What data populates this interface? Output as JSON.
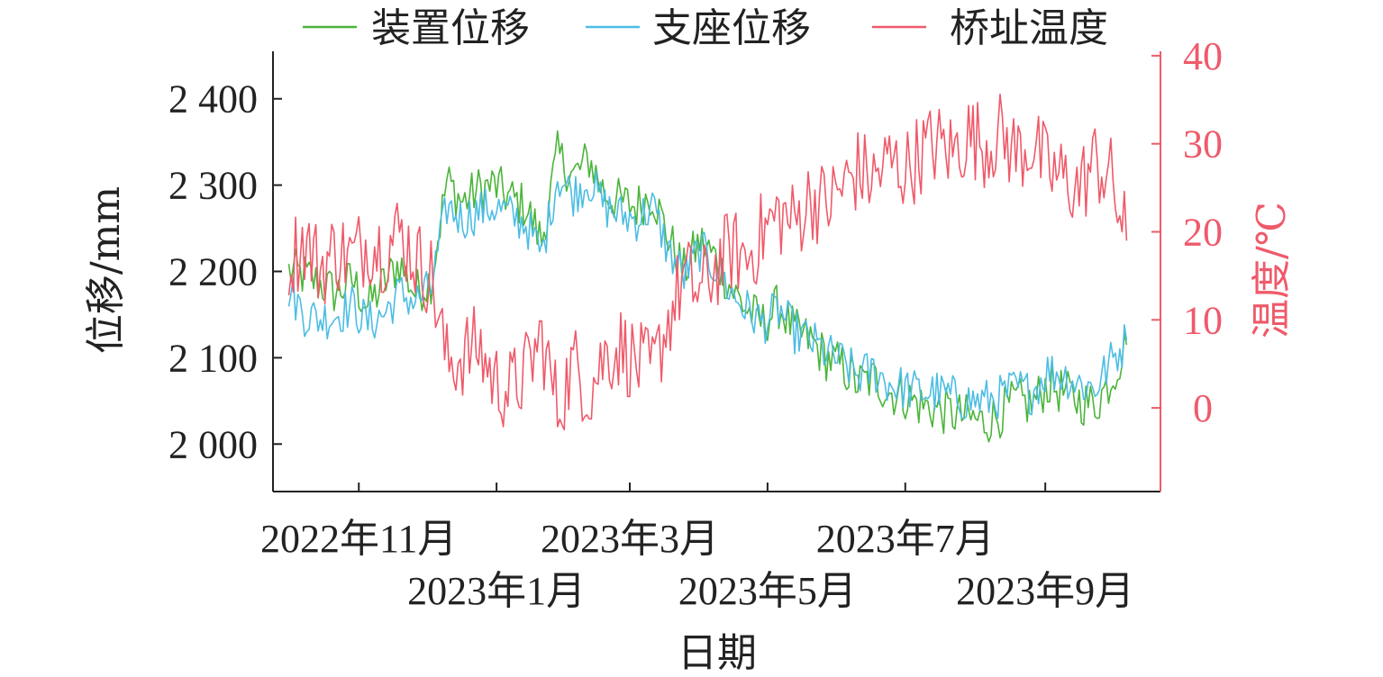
{
  "chart_data": {
    "type": "line",
    "title": "",
    "xlabel": "日期",
    "ylabel_left": "位移/mm",
    "ylabel_right": "温度/℃",
    "y_left_lim": [
      1945,
      2455
    ],
    "y_right_lim": [
      -9.5,
      40.5
    ],
    "y_left_ticks": [
      {
        "value": 2000,
        "label": "2 000"
      },
      {
        "value": 2100,
        "label": "2 100"
      },
      {
        "value": 2200,
        "label": "2 200"
      },
      {
        "value": 2300,
        "label": "2 300"
      },
      {
        "value": 2400,
        "label": "2 400"
      }
    ],
    "y_right_ticks": [
      {
        "value": 0,
        "label": "0"
      },
      {
        "value": 10,
        "label": "10"
      },
      {
        "value": 20,
        "label": "20"
      },
      {
        "value": 30,
        "label": "30"
      },
      {
        "value": 40,
        "label": "40"
      }
    ],
    "x_range": [
      "2022-09-24",
      "2023-10-22"
    ],
    "x_ticks": [
      {
        "date": "2022-11-01",
        "label": "2022年11月",
        "row": 1
      },
      {
        "date": "2023-01-01",
        "label": "2023年1月",
        "row": 2
      },
      {
        "date": "2023-03-01",
        "label": "2023年3月",
        "row": 1
      },
      {
        "date": "2023-05-01",
        "label": "2023年5月",
        "row": 2
      },
      {
        "date": "2023-07-01",
        "label": "2023年7月",
        "row": 1
      },
      {
        "date": "2023-09-01",
        "label": "2023年9月",
        "row": 2
      }
    ],
    "legend_position": "top",
    "grid": false,
    "series": [
      {
        "name": "装置位移",
        "axis": "left",
        "color": "#4bb53a",
        "points": [
          [
            "2022-10-01",
            2200
          ],
          [
            "2022-10-08",
            2195
          ],
          [
            "2022-10-15",
            2185
          ],
          [
            "2022-10-22",
            2175
          ],
          [
            "2022-10-29",
            2190
          ],
          [
            "2022-11-05",
            2160
          ],
          [
            "2022-11-12",
            2185
          ],
          [
            "2022-11-19",
            2210
          ],
          [
            "2022-11-26",
            2175
          ],
          [
            "2022-12-03",
            2190
          ],
          [
            "2022-12-10",
            2305
          ],
          [
            "2022-12-17",
            2280
          ],
          [
            "2022-12-24",
            2295
          ],
          [
            "2022-12-31",
            2300
          ],
          [
            "2023-01-07",
            2285
          ],
          [
            "2023-01-14",
            2275
          ],
          [
            "2023-01-21",
            2235
          ],
          [
            "2023-01-28",
            2335
          ],
          [
            "2023-02-04",
            2310
          ],
          [
            "2023-02-11",
            2330
          ],
          [
            "2023-02-18",
            2290
          ],
          [
            "2023-02-25",
            2280
          ],
          [
            "2023-03-04",
            2275
          ],
          [
            "2023-03-11",
            2290
          ],
          [
            "2023-03-18",
            2240
          ],
          [
            "2023-03-25",
            2200
          ],
          [
            "2023-04-01",
            2235
          ],
          [
            "2023-04-08",
            2215
          ],
          [
            "2023-04-15",
            2180
          ],
          [
            "2023-04-22",
            2155
          ],
          [
            "2023-04-29",
            2140
          ],
          [
            "2023-05-06",
            2160
          ],
          [
            "2023-05-13",
            2130
          ],
          [
            "2023-05-20",
            2120
          ],
          [
            "2023-05-27",
            2100
          ],
          [
            "2023-06-03",
            2090
          ],
          [
            "2023-06-10",
            2070
          ],
          [
            "2023-06-17",
            2075
          ],
          [
            "2023-06-24",
            2060
          ],
          [
            "2023-07-01",
            2055
          ],
          [
            "2023-07-08",
            2045
          ],
          [
            "2023-07-15",
            2040
          ],
          [
            "2023-07-22",
            2035
          ],
          [
            "2023-07-29",
            2030
          ],
          [
            "2023-08-05",
            2025
          ],
          [
            "2023-08-12",
            2035
          ],
          [
            "2023-08-19",
            2050
          ],
          [
            "2023-08-26",
            2045
          ],
          [
            "2023-09-02",
            2070
          ],
          [
            "2023-09-09",
            2060
          ],
          [
            "2023-09-16",
            2050
          ],
          [
            "2023-09-23",
            2045
          ],
          [
            "2023-09-30",
            2075
          ],
          [
            "2023-10-07",
            2115
          ]
        ]
      },
      {
        "name": "支座位移",
        "axis": "left",
        "color": "#4dbde3",
        "points": [
          [
            "2022-10-01",
            2180
          ],
          [
            "2022-10-08",
            2150
          ],
          [
            "2022-10-15",
            2145
          ],
          [
            "2022-10-22",
            2150
          ],
          [
            "2022-10-29",
            2160
          ],
          [
            "2022-11-05",
            2140
          ],
          [
            "2022-11-12",
            2150
          ],
          [
            "2022-11-19",
            2175
          ],
          [
            "2022-11-26",
            2165
          ],
          [
            "2022-12-03",
            2180
          ],
          [
            "2022-12-10",
            2275
          ],
          [
            "2022-12-17",
            2260
          ],
          [
            "2022-12-24",
            2270
          ],
          [
            "2022-12-31",
            2275
          ],
          [
            "2023-01-07",
            2265
          ],
          [
            "2023-01-14",
            2255
          ],
          [
            "2023-01-21",
            2220
          ],
          [
            "2023-01-28",
            2310
          ],
          [
            "2023-02-04",
            2290
          ],
          [
            "2023-02-11",
            2305
          ],
          [
            "2023-02-18",
            2275
          ],
          [
            "2023-02-25",
            2265
          ],
          [
            "2023-03-04",
            2260
          ],
          [
            "2023-03-11",
            2275
          ],
          [
            "2023-03-18",
            2225
          ],
          [
            "2023-03-25",
            2195
          ],
          [
            "2023-04-01",
            2225
          ],
          [
            "2023-04-08",
            2205
          ],
          [
            "2023-04-15",
            2175
          ],
          [
            "2023-04-22",
            2155
          ],
          [
            "2023-04-29",
            2140
          ],
          [
            "2023-05-06",
            2155
          ],
          [
            "2023-05-13",
            2130
          ],
          [
            "2023-05-20",
            2120
          ],
          [
            "2023-05-27",
            2105
          ],
          [
            "2023-06-03",
            2095
          ],
          [
            "2023-06-10",
            2080
          ],
          [
            "2023-06-17",
            2085
          ],
          [
            "2023-06-24",
            2070
          ],
          [
            "2023-07-01",
            2065
          ],
          [
            "2023-07-08",
            2060
          ],
          [
            "2023-07-15",
            2060
          ],
          [
            "2023-07-22",
            2055
          ],
          [
            "2023-07-29",
            2050
          ],
          [
            "2023-08-05",
            2050
          ],
          [
            "2023-08-12",
            2055
          ],
          [
            "2023-08-19",
            2065
          ],
          [
            "2023-08-26",
            2060
          ],
          [
            "2023-09-02",
            2085
          ],
          [
            "2023-09-09",
            2080
          ],
          [
            "2023-09-16",
            2070
          ],
          [
            "2023-09-23",
            2065
          ],
          [
            "2023-09-30",
            2095
          ],
          [
            "2023-10-07",
            2120
          ]
        ]
      },
      {
        "name": "桥址温度",
        "axis": "right",
        "color": "#ef5a6a",
        "points": [
          [
            "2022-10-01",
            17
          ],
          [
            "2022-10-08",
            19
          ],
          [
            "2022-10-15",
            16
          ],
          [
            "2022-10-22",
            18
          ],
          [
            "2022-10-29",
            17
          ],
          [
            "2022-11-05",
            19
          ],
          [
            "2022-11-12",
            18
          ],
          [
            "2022-11-19",
            20
          ],
          [
            "2022-11-26",
            17
          ],
          [
            "2022-12-03",
            15
          ],
          [
            "2022-12-10",
            5
          ],
          [
            "2022-12-17",
            6
          ],
          [
            "2022-12-24",
            7
          ],
          [
            "2022-12-31",
            3
          ],
          [
            "2023-01-07",
            2
          ],
          [
            "2023-01-14",
            4
          ],
          [
            "2023-01-21",
            8
          ],
          [
            "2023-01-28",
            0
          ],
          [
            "2023-02-04",
            5
          ],
          [
            "2023-02-11",
            2
          ],
          [
            "2023-02-18",
            6
          ],
          [
            "2023-02-25",
            7
          ],
          [
            "2023-03-04",
            5
          ],
          [
            "2023-03-11",
            4
          ],
          [
            "2023-03-18",
            10
          ],
          [
            "2023-03-25",
            15
          ],
          [
            "2023-04-01",
            13
          ],
          [
            "2023-04-08",
            16
          ],
          [
            "2023-04-15",
            18
          ],
          [
            "2023-04-22",
            17
          ],
          [
            "2023-04-29",
            20
          ],
          [
            "2023-05-06",
            22
          ],
          [
            "2023-05-13",
            21
          ],
          [
            "2023-05-20",
            24
          ],
          [
            "2023-05-27",
            23
          ],
          [
            "2023-06-03",
            25
          ],
          [
            "2023-06-10",
            27
          ],
          [
            "2023-06-17",
            26
          ],
          [
            "2023-06-24",
            28
          ],
          [
            "2023-07-01",
            27
          ],
          [
            "2023-07-08",
            29
          ],
          [
            "2023-07-15",
            30
          ],
          [
            "2023-07-22",
            29
          ],
          [
            "2023-07-29",
            31
          ],
          [
            "2023-08-05",
            30
          ],
          [
            "2023-08-12",
            31
          ],
          [
            "2023-08-19",
            29
          ],
          [
            "2023-08-26",
            30
          ],
          [
            "2023-09-02",
            27
          ],
          [
            "2023-09-09",
            26
          ],
          [
            "2023-09-16",
            25
          ],
          [
            "2023-09-23",
            28
          ],
          [
            "2023-09-30",
            26
          ],
          [
            "2023-10-07",
            19
          ]
        ]
      }
    ]
  }
}
